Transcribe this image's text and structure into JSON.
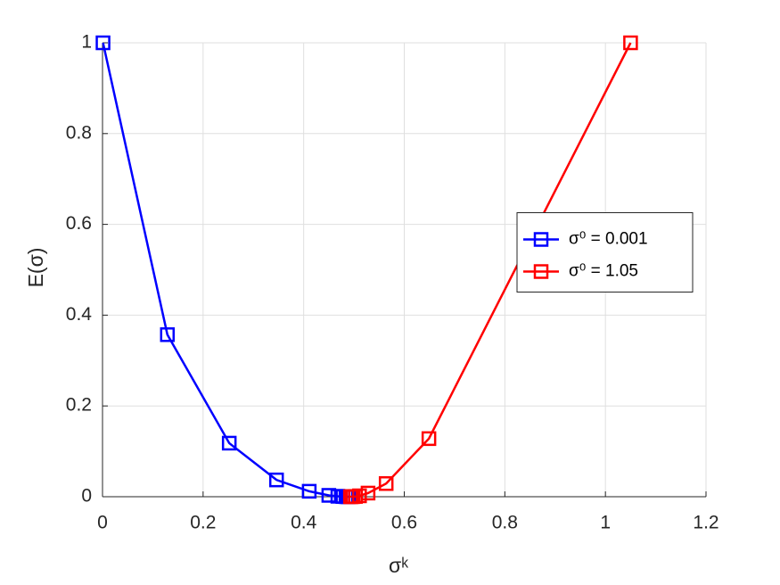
{
  "chart_data": {
    "type": "line",
    "xlabel": "σᵏ",
    "ylabel": "E(σ)",
    "xlim": [
      0,
      1.2
    ],
    "ylim": [
      0,
      1
    ],
    "xticks": [
      0,
      0.2,
      0.4,
      0.6,
      0.8,
      1,
      1.2
    ],
    "yticks": [
      0,
      0.2,
      0.4,
      0.6,
      0.8,
      1
    ],
    "grid": true,
    "legend": "right",
    "series": [
      {
        "name": "σ⁰ = 0.001",
        "color": "#0000ff",
        "x": [
          0.001,
          0.129,
          0.252,
          0.346,
          0.411,
          0.45,
          0.468,
          0.478,
          0.484,
          0.487,
          0.489
        ],
        "values": [
          1,
          0.357,
          0.118,
          0.037,
          0.012,
          0.003,
          0.001,
          0.0004,
          0.0002,
          0.0001,
          5e-05
        ]
      },
      {
        "name": "σ⁰ = 1.05",
        "color": "#ff0000",
        "x": [
          1.05,
          0.649,
          0.564,
          0.528,
          0.511,
          0.503,
          0.498,
          0.495,
          0.493
        ],
        "values": [
          1,
          0.128,
          0.029,
          0.008,
          0.002,
          0.0006,
          0.0002,
          0.0001,
          5e-05
        ]
      }
    ]
  }
}
